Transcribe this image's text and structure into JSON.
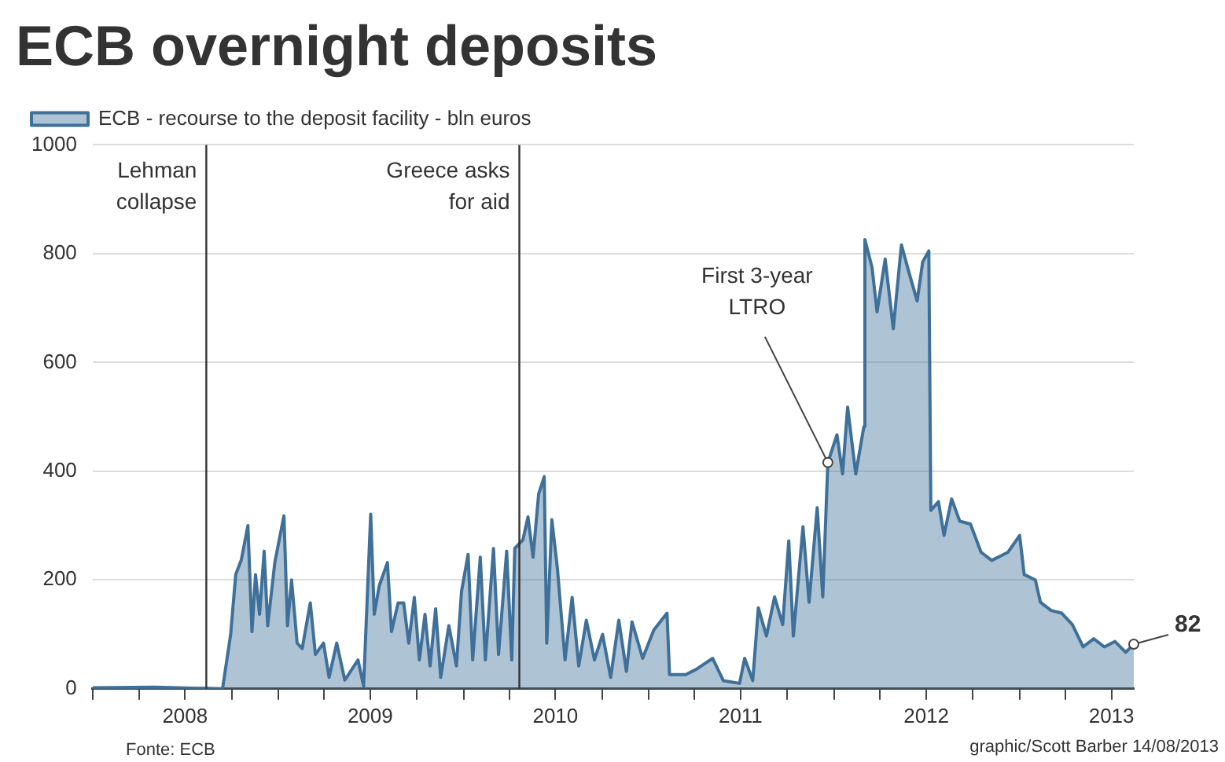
{
  "chart_data": {
    "type": "area",
    "title": "ECB overnight deposits",
    "series": [
      {
        "name": "ECB - recourse to the deposit facility - bln euros",
        "color": "#3f7099",
        "x": [
          "2008-01-01",
          "2008-05-01",
          "2008-09-13",
          "2008-09-29",
          "2008-10-09",
          "2008-10-20",
          "2008-11-02",
          "2008-11-10",
          "2008-11-17",
          "2008-11-25",
          "2008-12-04",
          "2008-12-11",
          "2008-12-25",
          "2009-01-12",
          "2009-01-19",
          "2009-01-27",
          "2009-02-07",
          "2009-02-17",
          "2009-03-05",
          "2009-03-15",
          "2009-03-31",
          "2009-04-11",
          "2009-04-26",
          "2009-05-12",
          "2009-06-07",
          "2009-06-18",
          "2009-07-02",
          "2009-07-09",
          "2009-07-19",
          "2009-08-04",
          "2009-08-12",
          "2009-08-25",
          "2009-09-05",
          "2009-09-15",
          "2009-09-26",
          "2009-10-06",
          "2009-10-17",
          "2009-10-27",
          "2009-11-07",
          "2009-11-17",
          "2009-12-03",
          "2009-12-18",
          "2009-12-28",
          "2010-01-10",
          "2010-01-19",
          "2010-02-03",
          "2010-02-13",
          "2010-03-01",
          "2010-03-11",
          "2010-03-27",
          "2010-04-06",
          "2010-04-12",
          "2010-04-28",
          "2010-05-08",
          "2010-05-18",
          "2010-05-29",
          "2010-06-09",
          "2010-06-14",
          "2010-06-24",
          "2010-07-05",
          "2010-07-20",
          "2010-08-03",
          "2010-08-16",
          "2010-08-31",
          "2010-09-16",
          "2010-10-02",
          "2010-10-18",
          "2010-11-03",
          "2010-11-18",
          "2010-11-29",
          "2010-12-20",
          "2011-01-11",
          "2011-02-06",
          "2011-02-11",
          "2011-03-15",
          "2011-04-05",
          "2011-05-07",
          "2011-05-28",
          "2011-06-29",
          "2011-07-09",
          "2011-07-25",
          "2011-08-05",
          "2011-08-21",
          "2011-09-06",
          "2011-09-22",
          "2011-10-04",
          "2011-10-13",
          "2011-11-01",
          "2011-11-13",
          "2011-11-29",
          "2011-12-10",
          "2011-12-20",
          "2012-01-07",
          "2012-01-18",
          "2012-01-28",
          "2012-02-13",
          "2012-02-29",
          "2012-03-02",
          "2012-03-16",
          "2012-03-26",
          "2012-04-11",
          "2012-04-27",
          "2012-05-13",
          "2012-05-28",
          "2012-06-13",
          "2012-06-24",
          "2012-07-06",
          "2012-07-10",
          "2012-07-25",
          "2012-08-05",
          "2012-08-20",
          "2012-09-05",
          "2012-09-26",
          "2012-10-17",
          "2012-11-07",
          "2012-12-09",
          "2013-01-01",
          "2013-01-10",
          "2013-02-01",
          "2013-02-11",
          "2013-03-04",
          "2013-03-25",
          "2013-04-15",
          "2013-05-06",
          "2013-05-27",
          "2013-06-17",
          "2013-07-08",
          "2013-07-29",
          "2013-08-14"
        ],
        "values": [
          2,
          3,
          0,
          100,
          210,
          237,
          300,
          105,
          210,
          137,
          253,
          116,
          232,
          318,
          116,
          200,
          84,
          74,
          158,
          63,
          84,
          21,
          84,
          16,
          53,
          5,
          321,
          137,
          190,
          232,
          105,
          158,
          158,
          84,
          168,
          53,
          137,
          42,
          147,
          21,
          116,
          42,
          179,
          247,
          53,
          242,
          53,
          258,
          63,
          253,
          53,
          258,
          274,
          316,
          242,
          358,
          390,
          84,
          311,
          221,
          53,
          168,
          42,
          126,
          53,
          100,
          21,
          126,
          32,
          123,
          56,
          108,
          139,
          26,
          26,
          36,
          56,
          15,
          10,
          56,
          15,
          149,
          97,
          169,
          118,
          272,
          97,
          298,
          159,
          333,
          169,
          416,
          467,
          395,
          518,
          395,
          482,
          826,
          775,
          693,
          790,
          662,
          816,
          765,
          713,
          785,
          805,
          328,
          344,
          282,
          349,
          308,
          303,
          251,
          236,
          251,
          282,
          210,
          200,
          159,
          144,
          139,
          118,
          77,
          92,
          77,
          87,
          67,
          82
        ]
      }
    ],
    "xlim": [
      "2008-01-01",
      "2013-08-14"
    ],
    "xticks": [
      {
        "value": "2008-01-01",
        "label": null
      },
      {
        "value": "2008-04-01",
        "label": null
      },
      {
        "value": "2008-07-01",
        "label": "2008"
      },
      {
        "value": "2008-10-01",
        "label": null
      },
      {
        "value": "2009-01-01",
        "label": null
      },
      {
        "value": "2009-04-01",
        "label": null
      },
      {
        "value": "2009-07-01",
        "label": "2009"
      },
      {
        "value": "2009-10-01",
        "label": null
      },
      {
        "value": "2010-01-01",
        "label": null
      },
      {
        "value": "2010-04-01",
        "label": null
      },
      {
        "value": "2010-07-01",
        "label": "2010"
      },
      {
        "value": "2010-10-01",
        "label": null
      },
      {
        "value": "2011-01-01",
        "label": null
      },
      {
        "value": "2011-04-01",
        "label": null
      },
      {
        "value": "2011-07-01",
        "label": "2011"
      },
      {
        "value": "2011-10-01",
        "label": null
      },
      {
        "value": "2012-01-01",
        "label": null
      },
      {
        "value": "2012-04-01",
        "label": null
      },
      {
        "value": "2012-07-01",
        "label": "2012"
      },
      {
        "value": "2012-10-01",
        "label": null
      },
      {
        "value": "2013-01-01",
        "label": null
      },
      {
        "value": "2013-04-01",
        "label": null
      },
      {
        "value": "2013-07-01",
        "label": "2013"
      }
    ],
    "ylim": [
      0,
      1000
    ],
    "yticks": [
      0,
      200,
      400,
      600,
      800,
      1000
    ],
    "grid": "y",
    "legend": "top left",
    "ref_lines": [
      {
        "axis": "x",
        "value": "2008-08-12",
        "label": "Lehman\ncollapse",
        "color": "#333333"
      },
      {
        "axis": "x",
        "value": "2010-04-21",
        "label": "Greece asks\nfor aid",
        "color": "#333333"
      }
    ],
    "annotations": [
      {
        "text": "First 3-year\nLTRO",
        "x": "2011-12-20",
        "y": 416
      },
      {
        "text": "82",
        "x": "2013-08-14",
        "y": 82
      },
      "Fonte: ECB",
      "graphic/Scott Barber 14/08/2013"
    ]
  }
}
